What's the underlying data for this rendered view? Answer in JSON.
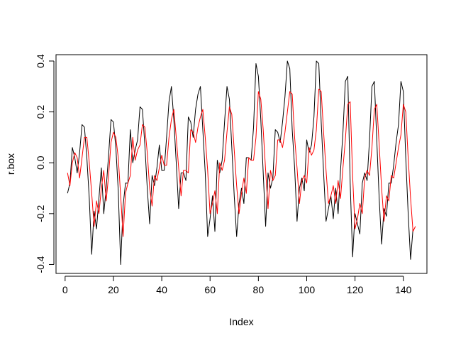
{
  "chart_data": {
    "type": "line",
    "title": "",
    "xlabel": "Index",
    "ylabel": "r.box",
    "xlim": [
      -3.76,
      149.76
    ],
    "ylim": [
      -0.435,
      0.425
    ],
    "xticks": [
      0,
      20,
      40,
      60,
      80,
      100,
      120,
      140
    ],
    "xtick_labels": [
      "0",
      "20",
      "40",
      "60",
      "80",
      "100",
      "120",
      "140"
    ],
    "yticks": [
      -0.4,
      -0.2,
      0.0,
      0.2,
      0.4
    ],
    "ytick_labels": [
      "-0.4",
      "-0.2",
      "0.0",
      "0.2",
      "0.4"
    ],
    "grid": false,
    "legend": "none",
    "series": [
      {
        "color": "#000000",
        "values": [
          -0.12,
          -0.08,
          0.06,
          0.02,
          -0.04,
          0.04,
          0.15,
          0.14,
          0.02,
          -0.14,
          -0.36,
          -0.19,
          -0.26,
          -0.14,
          -0.02,
          -0.2,
          -0.1,
          0.03,
          0.17,
          0.16,
          0.06,
          -0.11,
          -0.4,
          -0.17,
          -0.08,
          -0.08,
          0.13,
          0.0,
          0.05,
          0.09,
          0.22,
          0.21,
          0.07,
          -0.1,
          -0.24,
          -0.05,
          -0.09,
          -0.02,
          0.07,
          -0.03,
          -0.03,
          0.1,
          0.24,
          0.3,
          0.17,
          0.0,
          -0.18,
          -0.04,
          -0.04,
          -0.07,
          0.18,
          0.16,
          0.1,
          0.21,
          0.27,
          0.3,
          0.13,
          -0.04,
          -0.29,
          -0.22,
          -0.13,
          -0.27,
          0.01,
          -0.04,
          0.01,
          0.16,
          0.3,
          0.25,
          0.06,
          -0.13,
          -0.29,
          -0.16,
          -0.1,
          -0.16,
          0.02,
          0.02,
          0.01,
          0.14,
          0.39,
          0.34,
          0.17,
          -0.04,
          -0.25,
          -0.04,
          -0.1,
          -0.06,
          0.13,
          0.12,
          0.08,
          0.16,
          0.26,
          0.4,
          0.37,
          0.13,
          -0.02,
          -0.23,
          -0.1,
          -0.06,
          -0.11,
          0.09,
          0.04,
          0.07,
          0.18,
          0.4,
          0.39,
          0.16,
          -0.04,
          -0.23,
          -0.18,
          -0.13,
          -0.22,
          -0.1,
          -0.2,
          -0.03,
          0.12,
          0.32,
          0.34,
          -0.08,
          -0.37,
          -0.2,
          -0.24,
          -0.28,
          -0.08,
          -0.04,
          -0.07,
          0.09,
          0.3,
          0.32,
          0.09,
          -0.14,
          -0.32,
          -0.18,
          -0.21,
          -0.08,
          -0.08,
          -0.01,
          0.08,
          0.15,
          0.32,
          0.28,
          0.02,
          -0.2,
          -0.38,
          -0.26
        ]
      },
      {
        "color": "#ff0000",
        "values": [
          -0.04,
          -0.09,
          0.0,
          0.04,
          0.02,
          -0.06,
          0.02,
          0.1,
          0.1,
          0.0,
          -0.12,
          -0.25,
          -0.15,
          -0.2,
          -0.1,
          -0.03,
          -0.15,
          -0.05,
          0.08,
          0.12,
          0.1,
          0.02,
          -0.13,
          -0.29,
          -0.12,
          -0.08,
          -0.05,
          0.1,
          0.01,
          0.05,
          0.07,
          0.15,
          0.14,
          0.04,
          -0.1,
          -0.17,
          -0.05,
          -0.07,
          -0.02,
          0.03,
          -0.01,
          -0.01,
          0.1,
          0.17,
          0.21,
          0.1,
          -0.02,
          -0.13,
          -0.03,
          -0.03,
          -0.04,
          0.13,
          0.12,
          0.08,
          0.14,
          0.18,
          0.21,
          0.1,
          -0.03,
          -0.2,
          -0.16,
          -0.11,
          -0.2,
          0.0,
          -0.03,
          0.01,
          0.12,
          0.22,
          0.19,
          0.05,
          -0.09,
          -0.2,
          -0.12,
          -0.06,
          -0.12,
          0.02,
          0.01,
          0.01,
          0.1,
          0.28,
          0.25,
          0.13,
          -0.03,
          -0.18,
          -0.03,
          -0.07,
          -0.05,
          0.09,
          0.09,
          0.06,
          0.12,
          0.2,
          0.28,
          0.27,
          0.1,
          -0.02,
          -0.16,
          -0.07,
          -0.05,
          -0.08,
          0.06,
          0.03,
          0.05,
          0.13,
          0.29,
          0.28,
          0.12,
          -0.03,
          -0.16,
          -0.13,
          -0.09,
          -0.16,
          -0.07,
          -0.14,
          -0.02,
          0.09,
          0.23,
          0.24,
          -0.05,
          -0.26,
          -0.22,
          -0.16,
          -0.2,
          -0.06,
          -0.03,
          -0.05,
          0.06,
          0.21,
          0.23,
          0.07,
          -0.1,
          -0.23,
          -0.13,
          -0.15,
          -0.05,
          -0.06,
          0.0,
          0.06,
          0.11,
          0.23,
          0.2,
          0.02,
          -0.14,
          -0.27,
          -0.25
        ]
      }
    ]
  }
}
